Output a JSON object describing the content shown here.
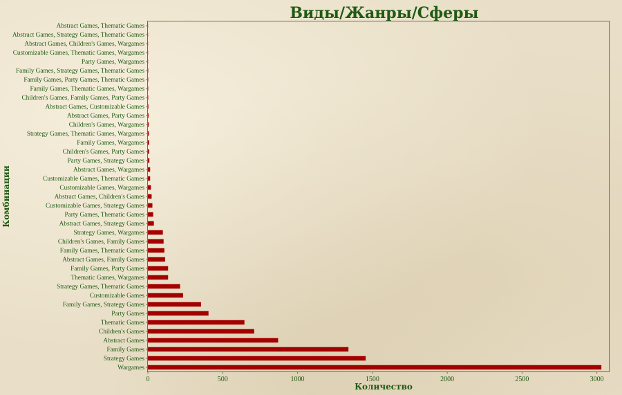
{
  "chart_data": {
    "type": "bar",
    "orientation": "horizontal",
    "title": "Виды/Жанры/Сферы",
    "xlabel": "Количество",
    "ylabel": "Комбинации",
    "xlim": [
      0,
      3080
    ],
    "xticks": [
      0,
      500,
      1000,
      1500,
      2000,
      2500,
      3000
    ],
    "grid": false,
    "legend": "none",
    "colors": {
      "bar": "#a30000",
      "text": "#1f5a12"
    },
    "categories": [
      "Wargames",
      "Strategy Games",
      "Family Games",
      "Abstract Games",
      "Children's Games",
      "Thematic Games",
      "Party Games",
      "Family Games, Strategy Games",
      "Customizable Games",
      "Strategy Games, Thematic Games",
      "Thematic Games, Wargames",
      "Family Games, Party Games",
      "Abstract Games, Family Games",
      "Family Games, Thematic Games",
      "Children's Games, Family Games",
      "Strategy Games, Wargames",
      "Abstract Games, Strategy Games",
      "Party Games, Thematic Games",
      "Customizable Games, Strategy Games",
      "Abstract Games, Children's Games",
      "Customizable Games, Wargames",
      "Customizable Games, Thematic Games",
      "Abstract Games, Wargames",
      "Party Games, Strategy Games",
      "Children's Games, Party Games",
      "Family Games, Wargames",
      "Strategy Games, Thematic Games, Wargames",
      "Children's Games, Wargames",
      "Abstract Games, Party Games",
      "Abstract Games, Customizable Games",
      "Children's Games, Family Games, Party Games",
      "Family Games, Thematic Games, Wargames",
      "Family Games, Party Games, Thematic Games",
      "Family Games, Strategy Games, Thematic Games",
      "Party Games, Wargames",
      "Customizable Games, Thematic Games, Wargames",
      "Abstract Games, Children's Games, Wargames",
      "Abstract Games, Strategy Games, Thematic Games",
      "Abstract Games, Thematic Games"
    ],
    "values": [
      3030,
      1455,
      1340,
      870,
      710,
      645,
      405,
      355,
      235,
      215,
      135,
      135,
      115,
      110,
      105,
      100,
      40,
      35,
      30,
      25,
      20,
      15,
      15,
      10,
      8,
      8,
      6,
      5,
      4,
      3,
      2,
      2,
      2,
      2,
      1,
      1,
      1,
      1,
      1
    ]
  }
}
